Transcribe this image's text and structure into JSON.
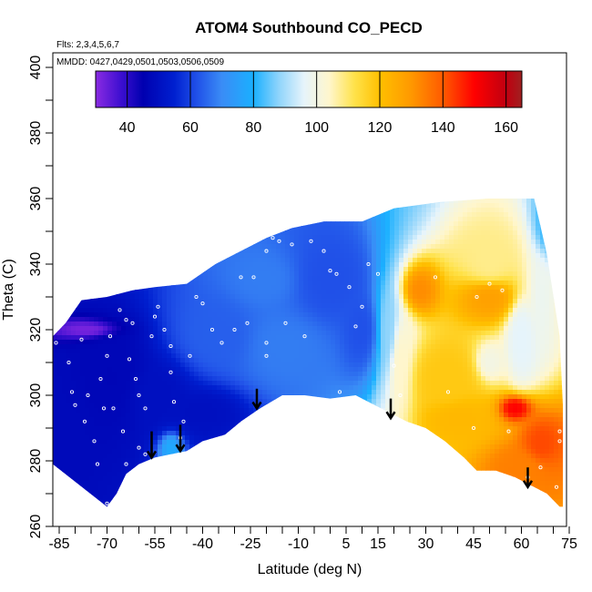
{
  "chart_data": {
    "type": "heatmap",
    "title": "ATOM4 Southbound CO_PECD",
    "flights_label": "Flts: 2,3,4,5,6,7",
    "dates_label": "MMDD: 0427,0429,0501,0503,0506,0509",
    "xlabel": "Latitude (deg N)",
    "ylabel": "Theta (C)",
    "xlim": [
      -87,
      83
    ],
    "ylim": [
      260,
      403
    ],
    "x_ticks": [
      -85,
      -70,
      -55,
      -40,
      -25,
      -10,
      5,
      15,
      30,
      45,
      60,
      75
    ],
    "x_minor_ticks": [
      -80,
      -75,
      -65,
      -60,
      -50,
      -45,
      -35,
      -30,
      -20,
      -15,
      -5,
      0,
      10,
      20,
      25,
      35,
      40,
      50,
      55,
      65,
      70,
      80
    ],
    "y_ticks": [
      260,
      280,
      300,
      320,
      340,
      360,
      380,
      400
    ],
    "colorbar": {
      "range": [
        30,
        165
      ],
      "ticks": [
        40,
        60,
        80,
        100,
        120,
        140,
        160
      ],
      "colors": [
        {
          "value": 30,
          "color": "#8a2be2"
        },
        {
          "value": 38,
          "color": "#3d0fd0"
        },
        {
          "value": 45,
          "color": "#0000b0"
        },
        {
          "value": 55,
          "color": "#0020d0"
        },
        {
          "value": 62,
          "color": "#2050e8"
        },
        {
          "value": 70,
          "color": "#3a8cf6"
        },
        {
          "value": 80,
          "color": "#1ab0ff"
        },
        {
          "value": 88,
          "color": "#8fd4fb"
        },
        {
          "value": 96,
          "color": "#e6f4fb"
        },
        {
          "value": 104,
          "color": "#fff6cc"
        },
        {
          "value": 112,
          "color": "#ffe24a"
        },
        {
          "value": 120,
          "color": "#ffc000"
        },
        {
          "value": 130,
          "color": "#ff9800"
        },
        {
          "value": 140,
          "color": "#ff5a00"
        },
        {
          "value": 150,
          "color": "#ff0000"
        },
        {
          "value": 160,
          "color": "#c00010"
        },
        {
          "value": 165,
          "color": "#a02020"
        }
      ]
    },
    "tropopause_floor": [
      [
        -70,
        266
      ],
      [
        -67,
        270
      ],
      [
        -64,
        276
      ],
      [
        -60,
        279
      ],
      [
        -55,
        281
      ],
      [
        -50,
        282
      ],
      [
        -45,
        283
      ],
      [
        -40,
        286
      ],
      [
        -33,
        288
      ],
      [
        -28,
        292
      ],
      [
        -22,
        296
      ],
      [
        -15,
        300
      ],
      [
        -8,
        300
      ],
      [
        0,
        299
      ],
      [
        8,
        300
      ],
      [
        12,
        298
      ],
      [
        18,
        295
      ],
      [
        24,
        292
      ],
      [
        30,
        290
      ],
      [
        36,
        286
      ],
      [
        42,
        281
      ],
      [
        46,
        277
      ],
      [
        52,
        277
      ],
      [
        58,
        275
      ],
      [
        64,
        272
      ],
      [
        68,
        270
      ],
      [
        72,
        266
      ]
    ],
    "data_envelope_top": [
      [
        -87,
        279
      ],
      [
        -87,
        318
      ],
      [
        -83,
        322
      ],
      [
        -78,
        329
      ],
      [
        -70,
        330
      ],
      [
        -62,
        332
      ],
      [
        -55,
        333
      ],
      [
        -45,
        334
      ],
      [
        -36,
        340
      ],
      [
        -28,
        344
      ],
      [
        -20,
        348
      ],
      [
        -12,
        351
      ],
      [
        -2,
        353
      ],
      [
        10,
        353
      ],
      [
        20,
        357
      ],
      [
        35,
        359
      ],
      [
        50,
        360
      ],
      [
        64,
        360
      ],
      [
        68,
        343
      ],
      [
        72,
        318
      ],
      [
        73,
        297
      ],
      [
        73,
        266
      ]
    ],
    "field_blobs": [
      {
        "x": -76,
        "y": 320,
        "value": 32,
        "rx": 7,
        "ry": 2
      },
      {
        "x": -82,
        "y": 290,
        "value": 48,
        "rx": 6,
        "ry": 10
      },
      {
        "x": -68,
        "y": 305,
        "value": 47,
        "rx": 10,
        "ry": 14
      },
      {
        "x": -55,
        "y": 300,
        "value": 50,
        "rx": 10,
        "ry": 10
      },
      {
        "x": -40,
        "y": 295,
        "value": 50,
        "rx": 10,
        "ry": 6
      },
      {
        "x": -50,
        "y": 284,
        "value": 78,
        "rx": 3,
        "ry": 4
      },
      {
        "x": -35,
        "y": 318,
        "value": 64,
        "rx": 12,
        "ry": 10
      },
      {
        "x": -15,
        "y": 315,
        "value": 68,
        "rx": 12,
        "ry": 10
      },
      {
        "x": 0,
        "y": 335,
        "value": 62,
        "rx": 12,
        "ry": 12
      },
      {
        "x": 10,
        "y": 320,
        "value": 62,
        "rx": 6,
        "ry": 12
      },
      {
        "x": -20,
        "y": 335,
        "value": 68,
        "rx": 10,
        "ry": 8
      },
      {
        "x": 18,
        "y": 320,
        "value": 88,
        "rx": 4,
        "ry": 16
      },
      {
        "x": 22,
        "y": 310,
        "value": 104,
        "rx": 4,
        "ry": 16
      },
      {
        "x": 28,
        "y": 332,
        "value": 132,
        "rx": 5,
        "ry": 6
      },
      {
        "x": 36,
        "y": 305,
        "value": 118,
        "rx": 10,
        "ry": 10
      },
      {
        "x": 50,
        "y": 330,
        "value": 128,
        "rx": 8,
        "ry": 6
      },
      {
        "x": 60,
        "y": 318,
        "value": 96,
        "rx": 4,
        "ry": 12
      },
      {
        "x": 66,
        "y": 330,
        "value": 98,
        "rx": 3,
        "ry": 12
      },
      {
        "x": 40,
        "y": 293,
        "value": 122,
        "rx": 10,
        "ry": 6
      },
      {
        "x": 58,
        "y": 296,
        "value": 150,
        "rx": 4,
        "ry": 3
      },
      {
        "x": 66,
        "y": 285,
        "value": 142,
        "rx": 5,
        "ry": 6
      },
      {
        "x": 60,
        "y": 278,
        "value": 134,
        "rx": 8,
        "ry": 6
      },
      {
        "x": 50,
        "y": 310,
        "value": 100,
        "rx": 4,
        "ry": 5
      },
      {
        "x": 50,
        "y": 340,
        "value": 108,
        "rx": 8,
        "ry": 8
      },
      {
        "x": 68,
        "y": 352,
        "value": 82,
        "rx": 3,
        "ry": 8
      }
    ],
    "sample_points": [
      [
        -86,
        316
      ],
      [
        -82,
        310
      ],
      [
        -80,
        297
      ],
      [
        -77,
        292
      ],
      [
        -74,
        286
      ],
      [
        -73,
        279
      ],
      [
        -70,
        267
      ],
      [
        -72,
        305
      ],
      [
        -70,
        312
      ],
      [
        -69,
        318
      ],
      [
        -66,
        326
      ],
      [
        -64,
        323
      ],
      [
        -63,
        311
      ],
      [
        -61,
        305
      ],
      [
        -60,
        300
      ],
      [
        -58,
        296
      ],
      [
        -56,
        318
      ],
      [
        -55,
        324
      ],
      [
        -54,
        327
      ],
      [
        -52,
        320
      ],
      [
        -50,
        315
      ],
      [
        -50,
        307
      ],
      [
        -49,
        298
      ],
      [
        -47,
        287
      ],
      [
        -46,
        292
      ],
      [
        -44,
        312
      ],
      [
        -42,
        330
      ],
      [
        -40,
        328
      ],
      [
        -37,
        320
      ],
      [
        -34,
        316
      ],
      [
        -30,
        320
      ],
      [
        -26,
        322
      ],
      [
        -24,
        336
      ],
      [
        -20,
        344
      ],
      [
        -18,
        348
      ],
      [
        -12,
        346
      ],
      [
        -6,
        347
      ],
      [
        -2,
        344
      ],
      [
        0,
        338
      ],
      [
        -8,
        318
      ],
      [
        -14,
        322
      ],
      [
        -20,
        316
      ],
      [
        2,
        337
      ],
      [
        6,
        333
      ],
      [
        8,
        321
      ],
      [
        10,
        327
      ],
      [
        12,
        340
      ],
      [
        15,
        337
      ],
      [
        -20,
        312
      ],
      [
        -28,
        336
      ],
      [
        -58,
        282
      ],
      [
        -64,
        279
      ],
      [
        -68,
        296
      ],
      [
        -76,
        300
      ],
      [
        -81,
        301
      ],
      [
        -65,
        289
      ],
      [
        -60,
        284
      ],
      [
        33,
        336
      ],
      [
        37,
        301
      ],
      [
        45,
        290
      ],
      [
        56,
        289
      ],
      [
        62,
        275
      ],
      [
        66,
        278
      ],
      [
        72,
        286
      ],
      [
        72,
        289
      ],
      [
        71,
        272
      ],
      [
        46,
        330
      ],
      [
        54,
        332
      ],
      [
        50,
        334
      ],
      [
        22,
        300
      ],
      [
        3,
        301
      ],
      [
        20,
        309
      ],
      [
        -16,
        347
      ],
      [
        -78,
        317
      ],
      [
        -71,
        296
      ],
      [
        -62,
        322
      ]
    ],
    "arrows": [
      {
        "x": -56,
        "y_top": 289,
        "y_bottom": 281
      },
      {
        "x": -47,
        "y_top": 291,
        "y_bottom": 283
      },
      {
        "x": -23,
        "y_top": 302,
        "y_bottom": 296
      },
      {
        "x": 19,
        "y_top": 299,
        "y_bottom": 293
      },
      {
        "x": 62,
        "y_top": 278,
        "y_bottom": 272
      }
    ]
  }
}
